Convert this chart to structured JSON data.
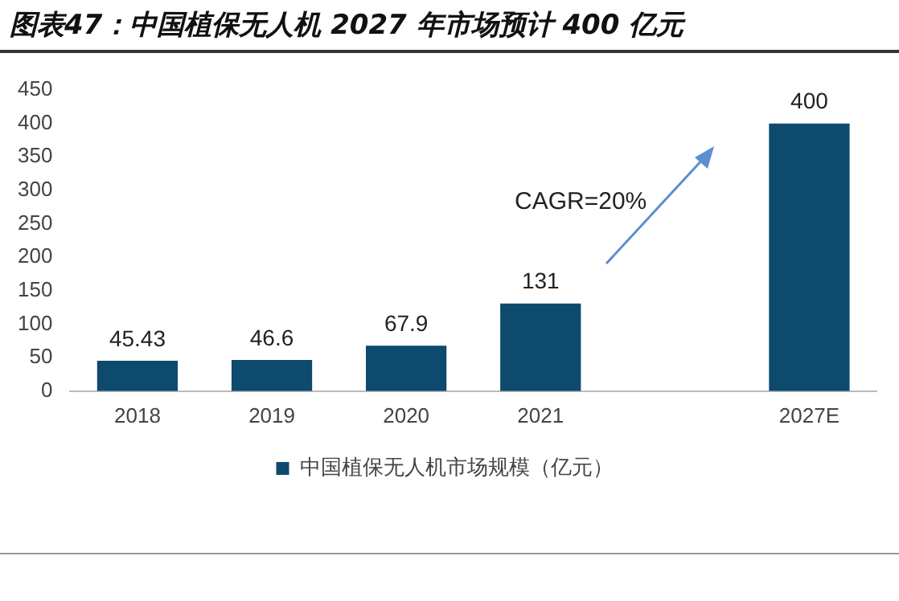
{
  "chart_data": {
    "type": "bar",
    "title": "图表47：中国植保无人机 2027 年市场预计 400 亿元",
    "categories": [
      "2018",
      "2019",
      "2020",
      "2021",
      null,
      "2027E"
    ],
    "series": [
      {
        "name": "中国植保无人机市场规模（亿元）",
        "color": "#0d4a6e",
        "values": [
          45.43,
          46.6,
          67.9,
          131,
          null,
          400
        ]
      }
    ],
    "ylim": [
      0,
      450
    ],
    "yticks": [
      0,
      50,
      100,
      150,
      200,
      250,
      300,
      350,
      400,
      450
    ],
    "grid": false,
    "legend": "bottom",
    "data_labels": true,
    "annotations": [
      "CAGR=20%"
    ]
  }
}
